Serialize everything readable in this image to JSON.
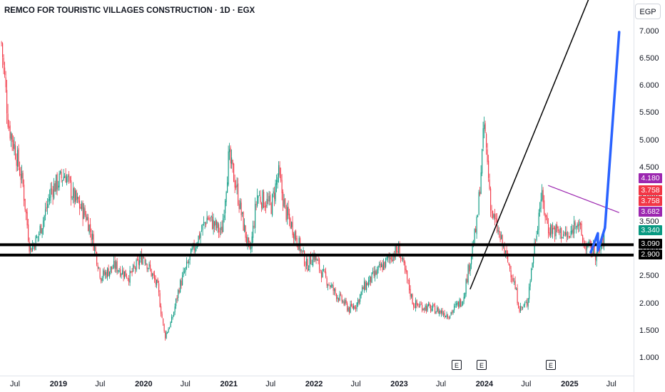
{
  "header": {
    "title": "REMCO FOR TOURISTIC VILLAGES CONSTRUCTION · 1D · EGX",
    "currency": "EGP"
  },
  "chart_data": {
    "type": "candlestick",
    "y_axis_ticks": [
      "7.000",
      "6.500",
      "6.000",
      "5.500",
      "5.000",
      "4.500",
      "4.000",
      "3.500",
      "3.000",
      "2.500",
      "2.000",
      "1.500",
      "1.000"
    ],
    "x_axis_ticks": [
      {
        "label": "Jul",
        "bold": false
      },
      {
        "label": "2019",
        "bold": true
      },
      {
        "label": "Jul",
        "bold": false
      },
      {
        "label": "2020",
        "bold": true
      },
      {
        "label": "Jul",
        "bold": false
      },
      {
        "label": "2021",
        "bold": true
      },
      {
        "label": "Jul",
        "bold": false
      },
      {
        "label": "2022",
        "bold": true
      },
      {
        "label": "Jul",
        "bold": false
      },
      {
        "label": "2023",
        "bold": true
      },
      {
        "label": "Jul",
        "bold": false
      },
      {
        "label": "2024",
        "bold": true
      },
      {
        "label": "Jul",
        "bold": false
      },
      {
        "label": "2025",
        "bold": true
      },
      {
        "label": "Jul",
        "bold": false
      }
    ],
    "price_path": [
      [
        "2018-05",
        6.8
      ],
      [
        "2018-06",
        5.3
      ],
      [
        "2018-07",
        4.8
      ],
      [
        "2018-08",
        4.2
      ],
      [
        "2018-09",
        3.0
      ],
      [
        "2018-10",
        3.2
      ],
      [
        "2018-11",
        3.6
      ],
      [
        "2018-12",
        4.1
      ],
      [
        "2019-02",
        4.4
      ],
      [
        "2019-03",
        4.0
      ],
      [
        "2019-05",
        3.6
      ],
      [
        "2019-06",
        3.1
      ],
      [
        "2019-07",
        2.5
      ],
      [
        "2019-09",
        2.7
      ],
      [
        "2019-11",
        2.5
      ],
      [
        "2020-01",
        2.9
      ],
      [
        "2020-02",
        2.6
      ],
      [
        "2020-03",
        2.3
      ],
      [
        "2020-04",
        1.4
      ],
      [
        "2020-05",
        1.7
      ],
      [
        "2020-06",
        2.3
      ],
      [
        "2020-08",
        3.0
      ],
      [
        "2020-10",
        3.6
      ],
      [
        "2020-12",
        3.3
      ],
      [
        "2021-01",
        4.7
      ],
      [
        "2021-02",
        4.2
      ],
      [
        "2021-03",
        3.5
      ],
      [
        "2021-04",
        2.9
      ],
      [
        "2021-05",
        4.0
      ],
      [
        "2021-07",
        3.8
      ],
      [
        "2021-08",
        4.4
      ],
      [
        "2021-09",
        3.7
      ],
      [
        "2021-10",
        3.4
      ],
      [
        "2021-12",
        2.7
      ],
      [
        "2022-01",
        2.9
      ],
      [
        "2022-02",
        2.6
      ],
      [
        "2022-04",
        2.2
      ],
      [
        "2022-06",
        1.9
      ],
      [
        "2022-07",
        2.0
      ],
      [
        "2022-08",
        2.3
      ],
      [
        "2022-10",
        2.6
      ],
      [
        "2022-12",
        2.9
      ],
      [
        "2023-01",
        3.0
      ],
      [
        "2023-02",
        2.5
      ],
      [
        "2023-03",
        2.0
      ],
      [
        "2023-06",
        1.9
      ],
      [
        "2023-08",
        1.8
      ],
      [
        "2023-10",
        2.1
      ],
      [
        "2023-12",
        3.5
      ],
      [
        "2024-01",
        5.3
      ],
      [
        "2024-02",
        3.7
      ],
      [
        "2024-04",
        2.9
      ],
      [
        "2024-05",
        2.5
      ],
      [
        "2024-06",
        1.9
      ],
      [
        "2024-07",
        2.0
      ],
      [
        "2024-08",
        3.0
      ],
      [
        "2024-09",
        4.0
      ],
      [
        "2024-10",
        3.4
      ],
      [
        "2024-12",
        3.3
      ],
      [
        "2025-01",
        3.2
      ],
      [
        "2025-02",
        3.6
      ],
      [
        "2025-03",
        3.1
      ],
      [
        "2025-04",
        3.0
      ],
      [
        "2025-05",
        2.9
      ],
      [
        "2025-06",
        3.3
      ]
    ],
    "drawings": [
      {
        "name": "support-line-upper",
        "kind": "horizontal",
        "price": 3.09,
        "color": "#000000"
      },
      {
        "name": "support-line-lower",
        "kind": "horizontal",
        "price": 2.9,
        "color": "#000000"
      },
      {
        "name": "trend-line",
        "kind": "segment",
        "color": "#000000",
        "from": [
          "2023-11",
          2.27
        ],
        "to": [
          "2025-04",
          7.7
        ]
      },
      {
        "name": "resistance-line",
        "kind": "segment",
        "color": "#9c27b0",
        "from": [
          "2024-10",
          4.18
        ],
        "to": [
          "2025-08",
          3.68
        ]
      },
      {
        "name": "projection-arrow",
        "kind": "path",
        "color": "#2962ff",
        "points": [
          [
            "2025-04",
            2.95
          ],
          [
            "2025-05",
            3.3
          ],
          [
            "2025-05",
            2.98
          ],
          [
            "2025-06",
            3.4
          ],
          [
            "2025-08",
            7.0
          ]
        ]
      }
    ],
    "price_labels": [
      {
        "value": "4.180",
        "color": "#9c27b0"
      },
      {
        "value": "3.758",
        "color": "#f23645"
      },
      {
        "value": "3.758",
        "color": "#f23645"
      },
      {
        "value": "3.682",
        "color": "#9c27b0"
      },
      {
        "value": "3.340",
        "color": "#089981"
      },
      {
        "value": "3.090",
        "color": "#000000"
      },
      {
        "value": "2.900",
        "color": "#000000"
      }
    ],
    "events": [
      "E",
      "E",
      "E"
    ],
    "colors": {
      "up": "#089981",
      "down": "#f23645"
    }
  }
}
